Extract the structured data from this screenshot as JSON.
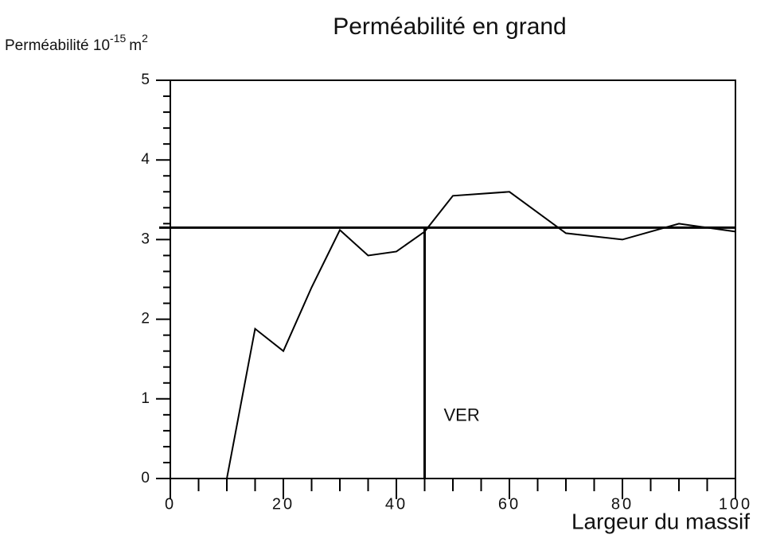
{
  "chart_data": {
    "type": "line",
    "title": "Perméabilité en grand",
    "ylabel": [
      "Perméabilité 10",
      "-15",
      "m",
      "2"
    ],
    "xlabel": "Largeur du massif",
    "x": [
      10,
      15,
      20,
      25,
      30,
      35,
      40,
      45,
      50,
      60,
      70,
      80,
      90,
      100
    ],
    "series": [
      {
        "color": "#000000",
        "values": [
          0,
          1.88,
          1.6,
          2.4,
          3.12,
          2.8,
          2.85,
          3.1,
          3.55,
          3.6,
          3.08,
          3.0,
          3.2,
          3.1
        ]
      }
    ],
    "reference_y": 3.15,
    "reference_x": 45,
    "annotation": "VER",
    "xlim": [
      0,
      100
    ],
    "ylim": [
      0,
      5
    ],
    "xticks": [
      0,
      20,
      40,
      60,
      80,
      100
    ],
    "yticks": [
      0,
      1,
      2,
      3,
      4,
      5
    ],
    "xminorticks": [
      5,
      10,
      15,
      25,
      30,
      35,
      45,
      50,
      55,
      65,
      70,
      75,
      85,
      90,
      95
    ],
    "yminorticks": [
      0.2,
      0.4,
      0.6,
      0.8,
      1.2,
      1.4,
      1.6,
      1.8,
      2.2,
      2.4,
      2.6,
      2.8,
      3.2,
      3.4,
      3.6,
      3.8,
      4.2,
      4.4,
      4.6,
      4.8
    ],
    "grid": false
  }
}
